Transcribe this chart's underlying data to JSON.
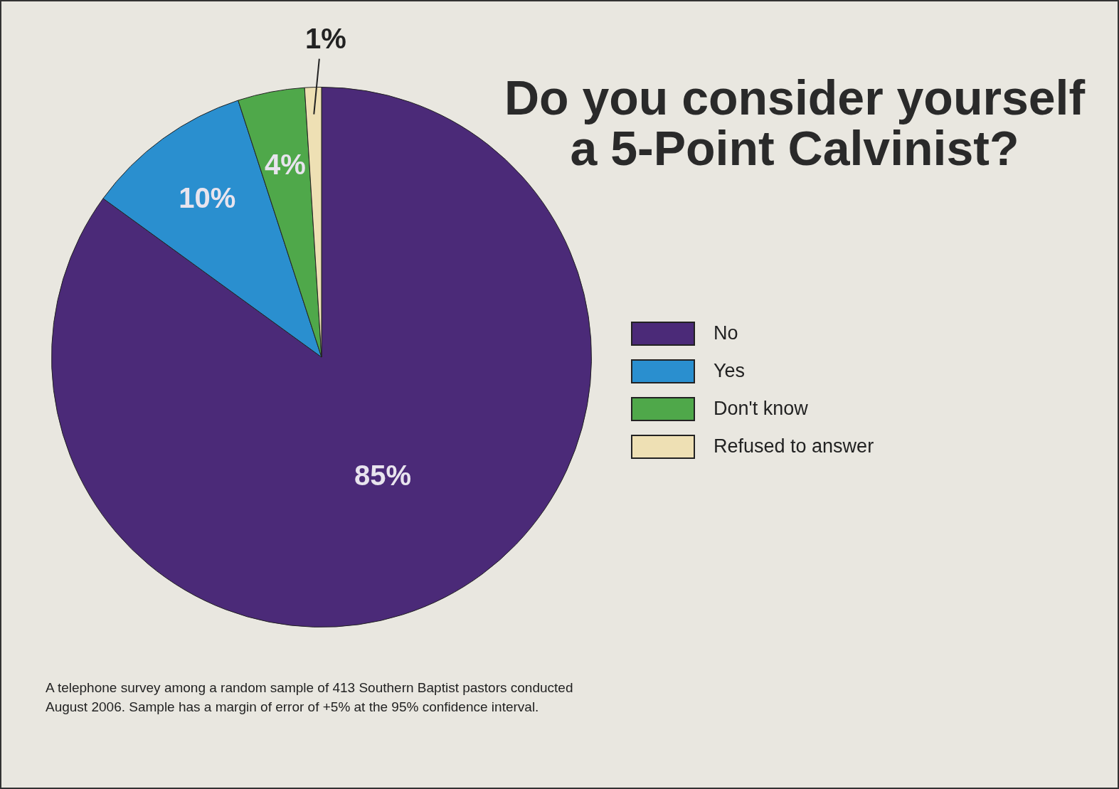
{
  "chart_data": {
    "type": "pie",
    "title": "Do you consider yourself a 5-Point Calvinist?",
    "categories": [
      "No",
      "Yes",
      "Don't know",
      "Refused to answer"
    ],
    "values": [
      85,
      10,
      4,
      1
    ],
    "colors": [
      "#4b2a78",
      "#2a8fcf",
      "#4fa84a",
      "#eee0b4"
    ],
    "value_labels": [
      "85%",
      "10%",
      "4%",
      "1%"
    ],
    "legend": "right",
    "annotations": [
      "A telephone survey among a random sample of 413 Southern Baptist pastors conducted August 2006. Sample has a margin of error of +5% at the 95% confidence interval."
    ]
  }
}
